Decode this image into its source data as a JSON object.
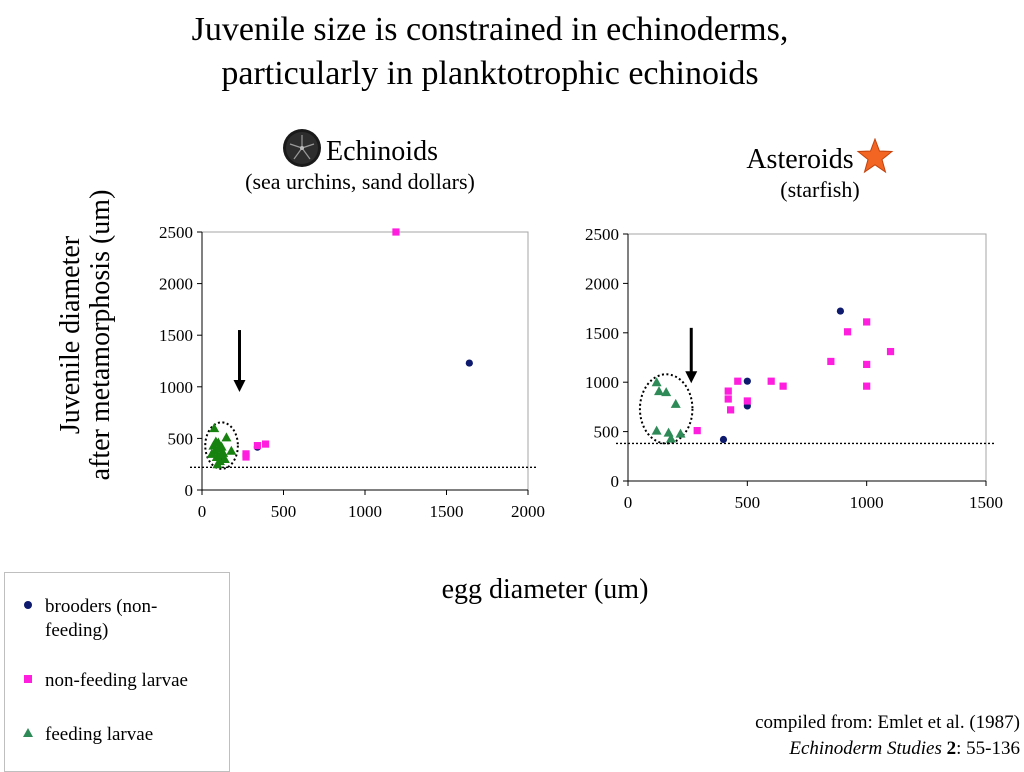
{
  "title": {
    "line1": "Juvenile size is constrained in echinoderms,",
    "line2": "particularly in planktotrophic echinoids"
  },
  "panels": [
    {
      "name": "Echinoids",
      "subtitle": "(sea urchins, sand dollars)",
      "icon": "sand-dollar-icon"
    },
    {
      "name": "Asteroids",
      "subtitle": "(starfish)",
      "icon": "starfish-icon"
    }
  ],
  "y_axis_label": {
    "line1": "Juvenile diameter",
    "line2": "after metamorphosis (um)"
  },
  "x_axis_label": "egg diameter (um)",
  "legend": [
    {
      "label": "brooders (non-feeding)",
      "marker": "circle",
      "color": "#0d1a6e"
    },
    {
      "label": "non-feeding larvae",
      "marker": "square",
      "color": "#ff1dde"
    },
    {
      "label": "feeding larvae",
      "marker": "triangle",
      "color": "#2e8b57"
    }
  ],
  "credit": {
    "line1": "compiled from: Emlet et al. (1987)",
    "journal": "Echinoderm Studies",
    "volume": "2",
    "pages": ": 55-136"
  },
  "colors": {
    "brooders": "#0d1a6e",
    "nonfeeding": "#ff1dde",
    "feeding_echinoid": "#17820f",
    "feeding_asteroid": "#2e8b57",
    "star": "#f26522"
  },
  "chart_data": [
    {
      "type": "scatter",
      "title": "Echinoids",
      "subtitle": "(sea urchins, sand dollars)",
      "xlabel": "egg diameter (um)",
      "ylabel": "Juvenile diameter after metamorphosis (um)",
      "xlim": [
        0,
        2000
      ],
      "ylim": [
        0,
        2500
      ],
      "xticks": [
        0,
        500,
        1000,
        1500,
        2000
      ],
      "yticks": [
        0,
        500,
        1000,
        1500,
        2000,
        2500
      ],
      "grid": false,
      "reference_line_y": 220,
      "arrow": {
        "x": 230,
        "y_from": 1550,
        "y_to": 950
      },
      "ellipse": {
        "cx": 120,
        "cy": 430,
        "rx": 100,
        "ry": 225
      },
      "series": [
        {
          "name": "brooders (non-feeding)",
          "marker": "circle",
          "color": "#0d1a6e",
          "points": [
            [
              1640,
              1230
            ],
            [
              340,
              415
            ],
            [
              120,
              300
            ]
          ]
        },
        {
          "name": "non-feeding larvae",
          "marker": "square",
          "color": "#ff1dde",
          "points": [
            [
              1190,
              2500
            ],
            [
              270,
              350
            ],
            [
              270,
              320
            ],
            [
              340,
              430
            ],
            [
              390,
              445
            ]
          ]
        },
        {
          "name": "feeding larvae",
          "marker": "triangle",
          "color": "#17820f",
          "points": [
            [
              75,
              600
            ],
            [
              150,
              510
            ],
            [
              70,
              430
            ],
            [
              100,
              460
            ],
            [
              80,
              380
            ],
            [
              90,
              320
            ],
            [
              110,
              280
            ],
            [
              120,
              420
            ],
            [
              130,
              360
            ],
            [
              100,
              400
            ],
            [
              60,
              350
            ],
            [
              140,
              300
            ],
            [
              180,
              380
            ],
            [
              95,
              250
            ],
            [
              115,
              340
            ],
            [
              85,
              470
            ]
          ]
        }
      ]
    },
    {
      "type": "scatter",
      "title": "Asteroids",
      "subtitle": "(starfish)",
      "xlabel": "egg diameter (um)",
      "ylabel": "Juvenile diameter after metamorphosis (um)",
      "xlim": [
        0,
        1500
      ],
      "ylim": [
        0,
        2500
      ],
      "xticks": [
        0,
        500,
        1000,
        1500
      ],
      "yticks": [
        0,
        500,
        1000,
        1500,
        2000,
        2500
      ],
      "grid": false,
      "reference_line_y": 380,
      "arrow": {
        "x": 265,
        "y_from": 1550,
        "y_to": 990
      },
      "ellipse": {
        "cx": 160,
        "cy": 730,
        "rx": 110,
        "ry": 350
      },
      "series": [
        {
          "name": "brooders (non-feeding)",
          "marker": "circle",
          "color": "#0d1a6e",
          "points": [
            [
              890,
              1720
            ],
            [
              500,
              1010
            ],
            [
              500,
              760
            ],
            [
              400,
              420
            ]
          ]
        },
        {
          "name": "non-feeding larvae",
          "marker": "square",
          "color": "#ff1dde",
          "points": [
            [
              290,
              510
            ],
            [
              420,
              910
            ],
            [
              420,
              830
            ],
            [
              430,
              720
            ],
            [
              460,
              1010
            ],
            [
              500,
              810
            ],
            [
              600,
              1010
            ],
            [
              650,
              960
            ],
            [
              850,
              1210
            ],
            [
              920,
              1510
            ],
            [
              1000,
              1610
            ],
            [
              1000,
              1180
            ],
            [
              1000,
              960
            ],
            [
              1100,
              1310
            ]
          ]
        },
        {
          "name": "feeding larvae",
          "marker": "triangle",
          "color": "#2e8b57",
          "points": [
            [
              120,
              1000
            ],
            [
              130,
              910
            ],
            [
              160,
              900
            ],
            [
              200,
              780
            ],
            [
              120,
              510
            ],
            [
              170,
              490
            ],
            [
              220,
              480
            ],
            [
              180,
              430
            ]
          ]
        }
      ]
    }
  ]
}
